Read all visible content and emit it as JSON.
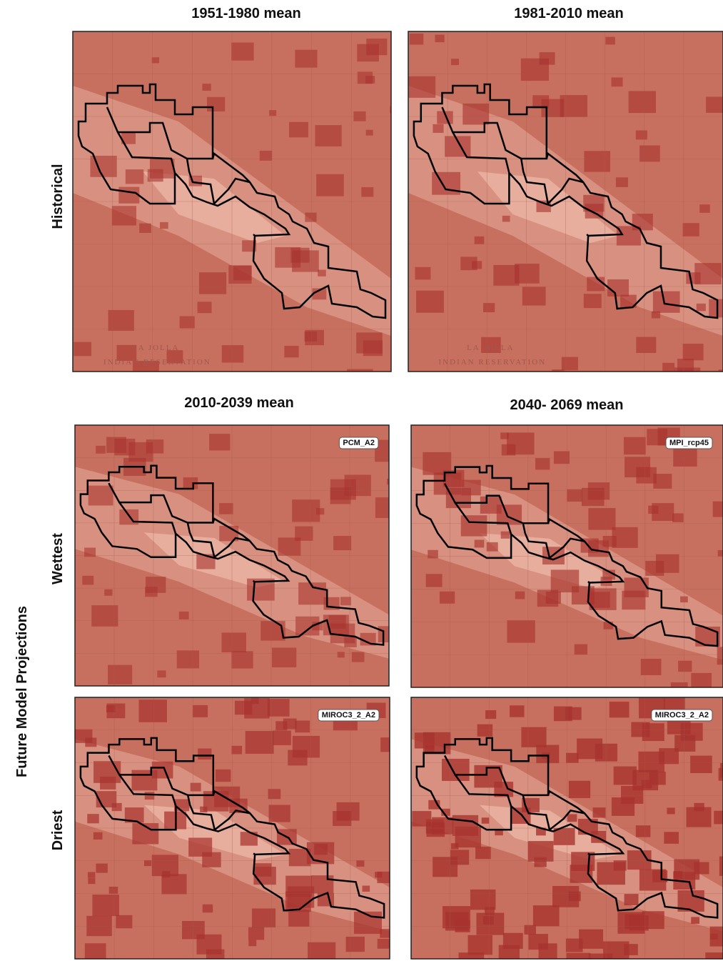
{
  "column_titles": {
    "historical": [
      "1951-1980 mean",
      "1981-2010 mean"
    ],
    "future": [
      "2010-2039 mean",
      "2040- 2069 mean"
    ]
  },
  "row_labels": {
    "historical": "Historical",
    "future_group": "Future Model Projections",
    "wettest": "Wettest",
    "driest": "Driest"
  },
  "model_labels": {
    "wettest": [
      "PCM_A2",
      "MPI_rcp45"
    ],
    "driest": [
      "MIROC3_2_A2",
      "MIROC3_2_A2"
    ]
  },
  "map_labels": [
    "LA JOLLA",
    "INDIAN RESERVATION"
  ]
}
